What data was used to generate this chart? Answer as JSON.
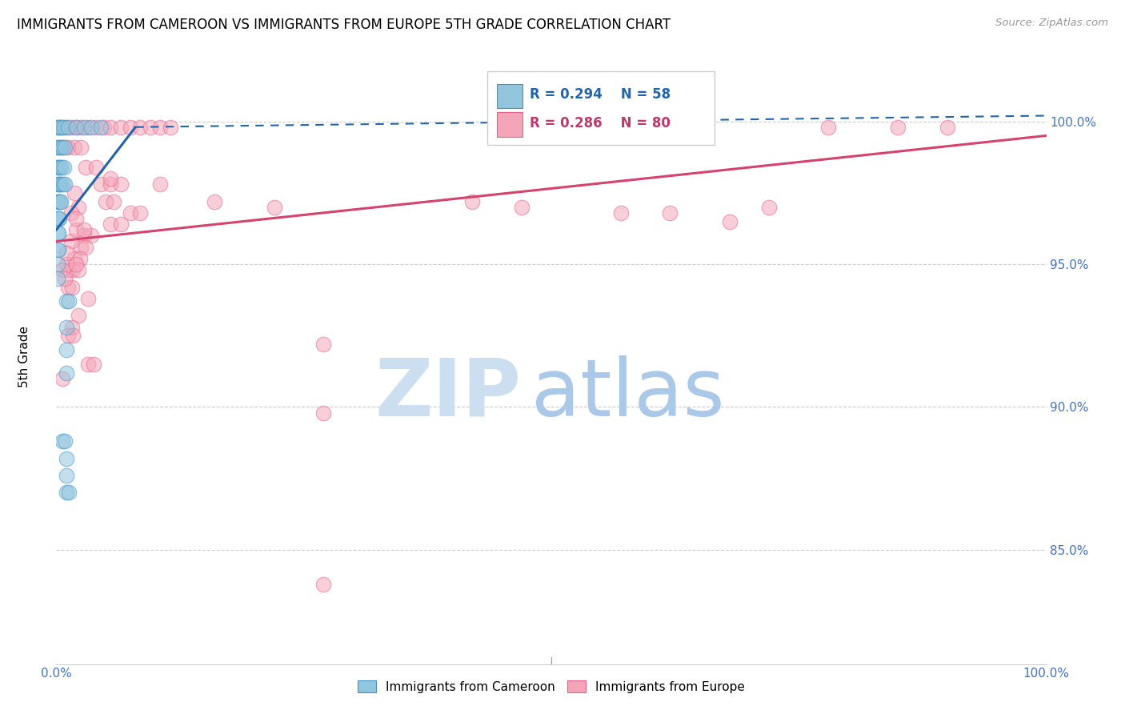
{
  "title": "IMMIGRANTS FROM CAMEROON VS IMMIGRANTS FROM EUROPE 5TH GRADE CORRELATION CHART",
  "source": "Source: ZipAtlas.com",
  "ylabel": "5th Grade",
  "ytick_vals": [
    85.0,
    90.0,
    95.0,
    100.0
  ],
  "ytick_right_vals": [
    85.0,
    90.0,
    95.0,
    100.0
  ],
  "xlim": [
    0.0,
    100.0
  ],
  "ylim": [
    81.0,
    102.5
  ],
  "color_blue": "#92c5de",
  "color_pink": "#f4a6b8",
  "color_blue_edge": "#4393c3",
  "color_pink_edge": "#e86090",
  "color_blue_line": "#2166ac",
  "color_pink_line": "#d6436e",
  "watermark_zip_color": "#ccdff0",
  "watermark_atlas_color": "#aac8e8",
  "blue_points": [
    [
      0.15,
      99.8
    ],
    [
      0.3,
      99.8
    ],
    [
      0.5,
      99.8
    ],
    [
      0.8,
      99.8
    ],
    [
      1.2,
      99.8
    ],
    [
      2.0,
      99.8
    ],
    [
      2.8,
      99.8
    ],
    [
      3.5,
      99.8
    ],
    [
      4.5,
      99.8
    ],
    [
      0.1,
      99.1
    ],
    [
      0.25,
      99.1
    ],
    [
      0.4,
      99.1
    ],
    [
      0.6,
      99.1
    ],
    [
      0.9,
      99.1
    ],
    [
      0.1,
      98.4
    ],
    [
      0.2,
      98.4
    ],
    [
      0.35,
      98.4
    ],
    [
      0.55,
      98.4
    ],
    [
      0.75,
      98.4
    ],
    [
      0.1,
      97.8
    ],
    [
      0.2,
      97.8
    ],
    [
      0.35,
      97.8
    ],
    [
      0.5,
      97.8
    ],
    [
      0.7,
      97.8
    ],
    [
      0.9,
      97.8
    ],
    [
      0.1,
      97.2
    ],
    [
      0.2,
      97.2
    ],
    [
      0.35,
      97.2
    ],
    [
      0.5,
      97.2
    ],
    [
      0.1,
      96.6
    ],
    [
      0.2,
      96.6
    ],
    [
      0.3,
      96.6
    ],
    [
      0.1,
      96.1
    ],
    [
      0.2,
      96.1
    ],
    [
      0.1,
      95.5
    ],
    [
      0.2,
      95.5
    ],
    [
      0.1,
      95.0
    ],
    [
      0.15,
      94.5
    ],
    [
      1.0,
      93.7
    ],
    [
      1.3,
      93.7
    ],
    [
      1.0,
      92.8
    ],
    [
      1.0,
      92.0
    ],
    [
      1.0,
      91.2
    ],
    [
      0.6,
      88.8
    ],
    [
      0.9,
      88.8
    ],
    [
      1.0,
      88.2
    ],
    [
      1.0,
      87.6
    ],
    [
      1.0,
      87.0
    ],
    [
      1.3,
      87.0
    ]
  ],
  "pink_points": [
    [
      0.3,
      99.8
    ],
    [
      0.6,
      99.8
    ],
    [
      1.0,
      99.8
    ],
    [
      1.5,
      99.8
    ],
    [
      2.0,
      99.8
    ],
    [
      2.5,
      99.8
    ],
    [
      3.2,
      99.8
    ],
    [
      4.0,
      99.8
    ],
    [
      4.8,
      99.8
    ],
    [
      5.5,
      99.8
    ],
    [
      6.5,
      99.8
    ],
    [
      7.5,
      99.8
    ],
    [
      8.5,
      99.8
    ],
    [
      9.5,
      99.8
    ],
    [
      10.5,
      99.8
    ],
    [
      11.5,
      99.8
    ],
    [
      78.0,
      99.8
    ],
    [
      85.0,
      99.8
    ],
    [
      90.0,
      99.8
    ],
    [
      0.6,
      99.1
    ],
    [
      1.2,
      99.1
    ],
    [
      1.8,
      99.1
    ],
    [
      2.5,
      99.1
    ],
    [
      3.0,
      98.4
    ],
    [
      4.0,
      98.4
    ],
    [
      4.5,
      97.8
    ],
    [
      5.5,
      97.8
    ],
    [
      6.5,
      97.8
    ],
    [
      5.0,
      97.2
    ],
    [
      5.8,
      97.2
    ],
    [
      7.5,
      96.8
    ],
    [
      8.5,
      96.8
    ],
    [
      5.5,
      96.4
    ],
    [
      6.5,
      96.4
    ],
    [
      2.8,
      96.0
    ],
    [
      3.5,
      96.0
    ],
    [
      2.5,
      95.6
    ],
    [
      3.0,
      95.6
    ],
    [
      1.8,
      95.2
    ],
    [
      2.4,
      95.2
    ],
    [
      1.3,
      94.8
    ],
    [
      1.7,
      94.8
    ],
    [
      2.2,
      94.8
    ],
    [
      1.2,
      94.2
    ],
    [
      1.6,
      94.2
    ],
    [
      3.2,
      93.8
    ],
    [
      2.2,
      93.2
    ],
    [
      1.6,
      92.8
    ],
    [
      1.0,
      95.0
    ],
    [
      2.0,
      95.0
    ],
    [
      62.0,
      96.8
    ],
    [
      68.0,
      96.5
    ],
    [
      27.0,
      92.2
    ],
    [
      1.2,
      92.5
    ],
    [
      1.7,
      92.5
    ],
    [
      3.2,
      91.5
    ],
    [
      3.8,
      91.5
    ],
    [
      0.6,
      91.0
    ],
    [
      27.0,
      89.8
    ],
    [
      5.5,
      98.0
    ],
    [
      27.0,
      83.8
    ],
    [
      1.8,
      97.5
    ],
    [
      10.5,
      97.8
    ],
    [
      16.0,
      97.2
    ],
    [
      22.0,
      97.0
    ],
    [
      0.6,
      94.8
    ],
    [
      0.9,
      94.5
    ],
    [
      2.2,
      97.0
    ],
    [
      1.5,
      95.8
    ],
    [
      1.0,
      95.4
    ],
    [
      42.0,
      97.2
    ],
    [
      47.0,
      97.0
    ],
    [
      57.0,
      96.8
    ],
    [
      72.0,
      97.0
    ],
    [
      2.0,
      96.2
    ],
    [
      2.8,
      96.2
    ],
    [
      1.5,
      96.8
    ],
    [
      2.0,
      96.6
    ]
  ],
  "blue_trendline_solid": [
    [
      0.0,
      96.2
    ],
    [
      8.0,
      99.8
    ]
  ],
  "blue_trendline_dashed": [
    [
      8.0,
      99.8
    ],
    [
      100.0,
      100.2
    ]
  ],
  "pink_trendline": [
    [
      0.0,
      95.8
    ],
    [
      100.0,
      99.5
    ]
  ]
}
